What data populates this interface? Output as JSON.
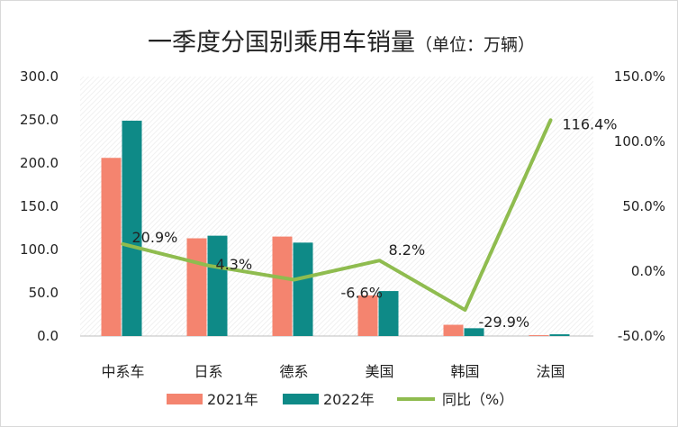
{
  "chart_data": {
    "type": "bar+line",
    "title": "一季度分国别乘用车销量",
    "title_unit": "（单位：万辆）",
    "categories": [
      "中系车",
      "日系",
      "德系",
      "美国",
      "韩国",
      "法国"
    ],
    "series": [
      {
        "name": "2021年",
        "type": "bar",
        "axis": "left",
        "color": "#f4846f",
        "values": [
          206,
          113,
          115,
          47,
          13,
          1
        ]
      },
      {
        "name": "2022年",
        "type": "bar",
        "axis": "left",
        "color": "#0e8a87",
        "values": [
          249,
          116,
          108,
          52,
          9,
          2
        ]
      },
      {
        "name": "同比（%）",
        "type": "line",
        "axis": "right",
        "color": "#8fbc4f",
        "values": [
          20.9,
          4.3,
          -6.6,
          8.2,
          -29.9,
          116.4
        ],
        "labels": [
          "20.9%",
          "4.3%",
          "-6.6%",
          "8.2%",
          "-29.9%",
          "116.4%"
        ]
      }
    ],
    "y_left": {
      "min": 0,
      "max": 300,
      "step": 50,
      "ticks": [
        "0.0",
        "50.0",
        "100.0",
        "150.0",
        "200.0",
        "250.0",
        "300.0"
      ]
    },
    "y_right": {
      "min": -50,
      "max": 150,
      "step": 50,
      "ticks": [
        "-50.0%",
        "0.0%",
        "50.0%",
        "100.0%",
        "150.0%"
      ]
    },
    "legend_position": "bottom",
    "grid": false
  }
}
